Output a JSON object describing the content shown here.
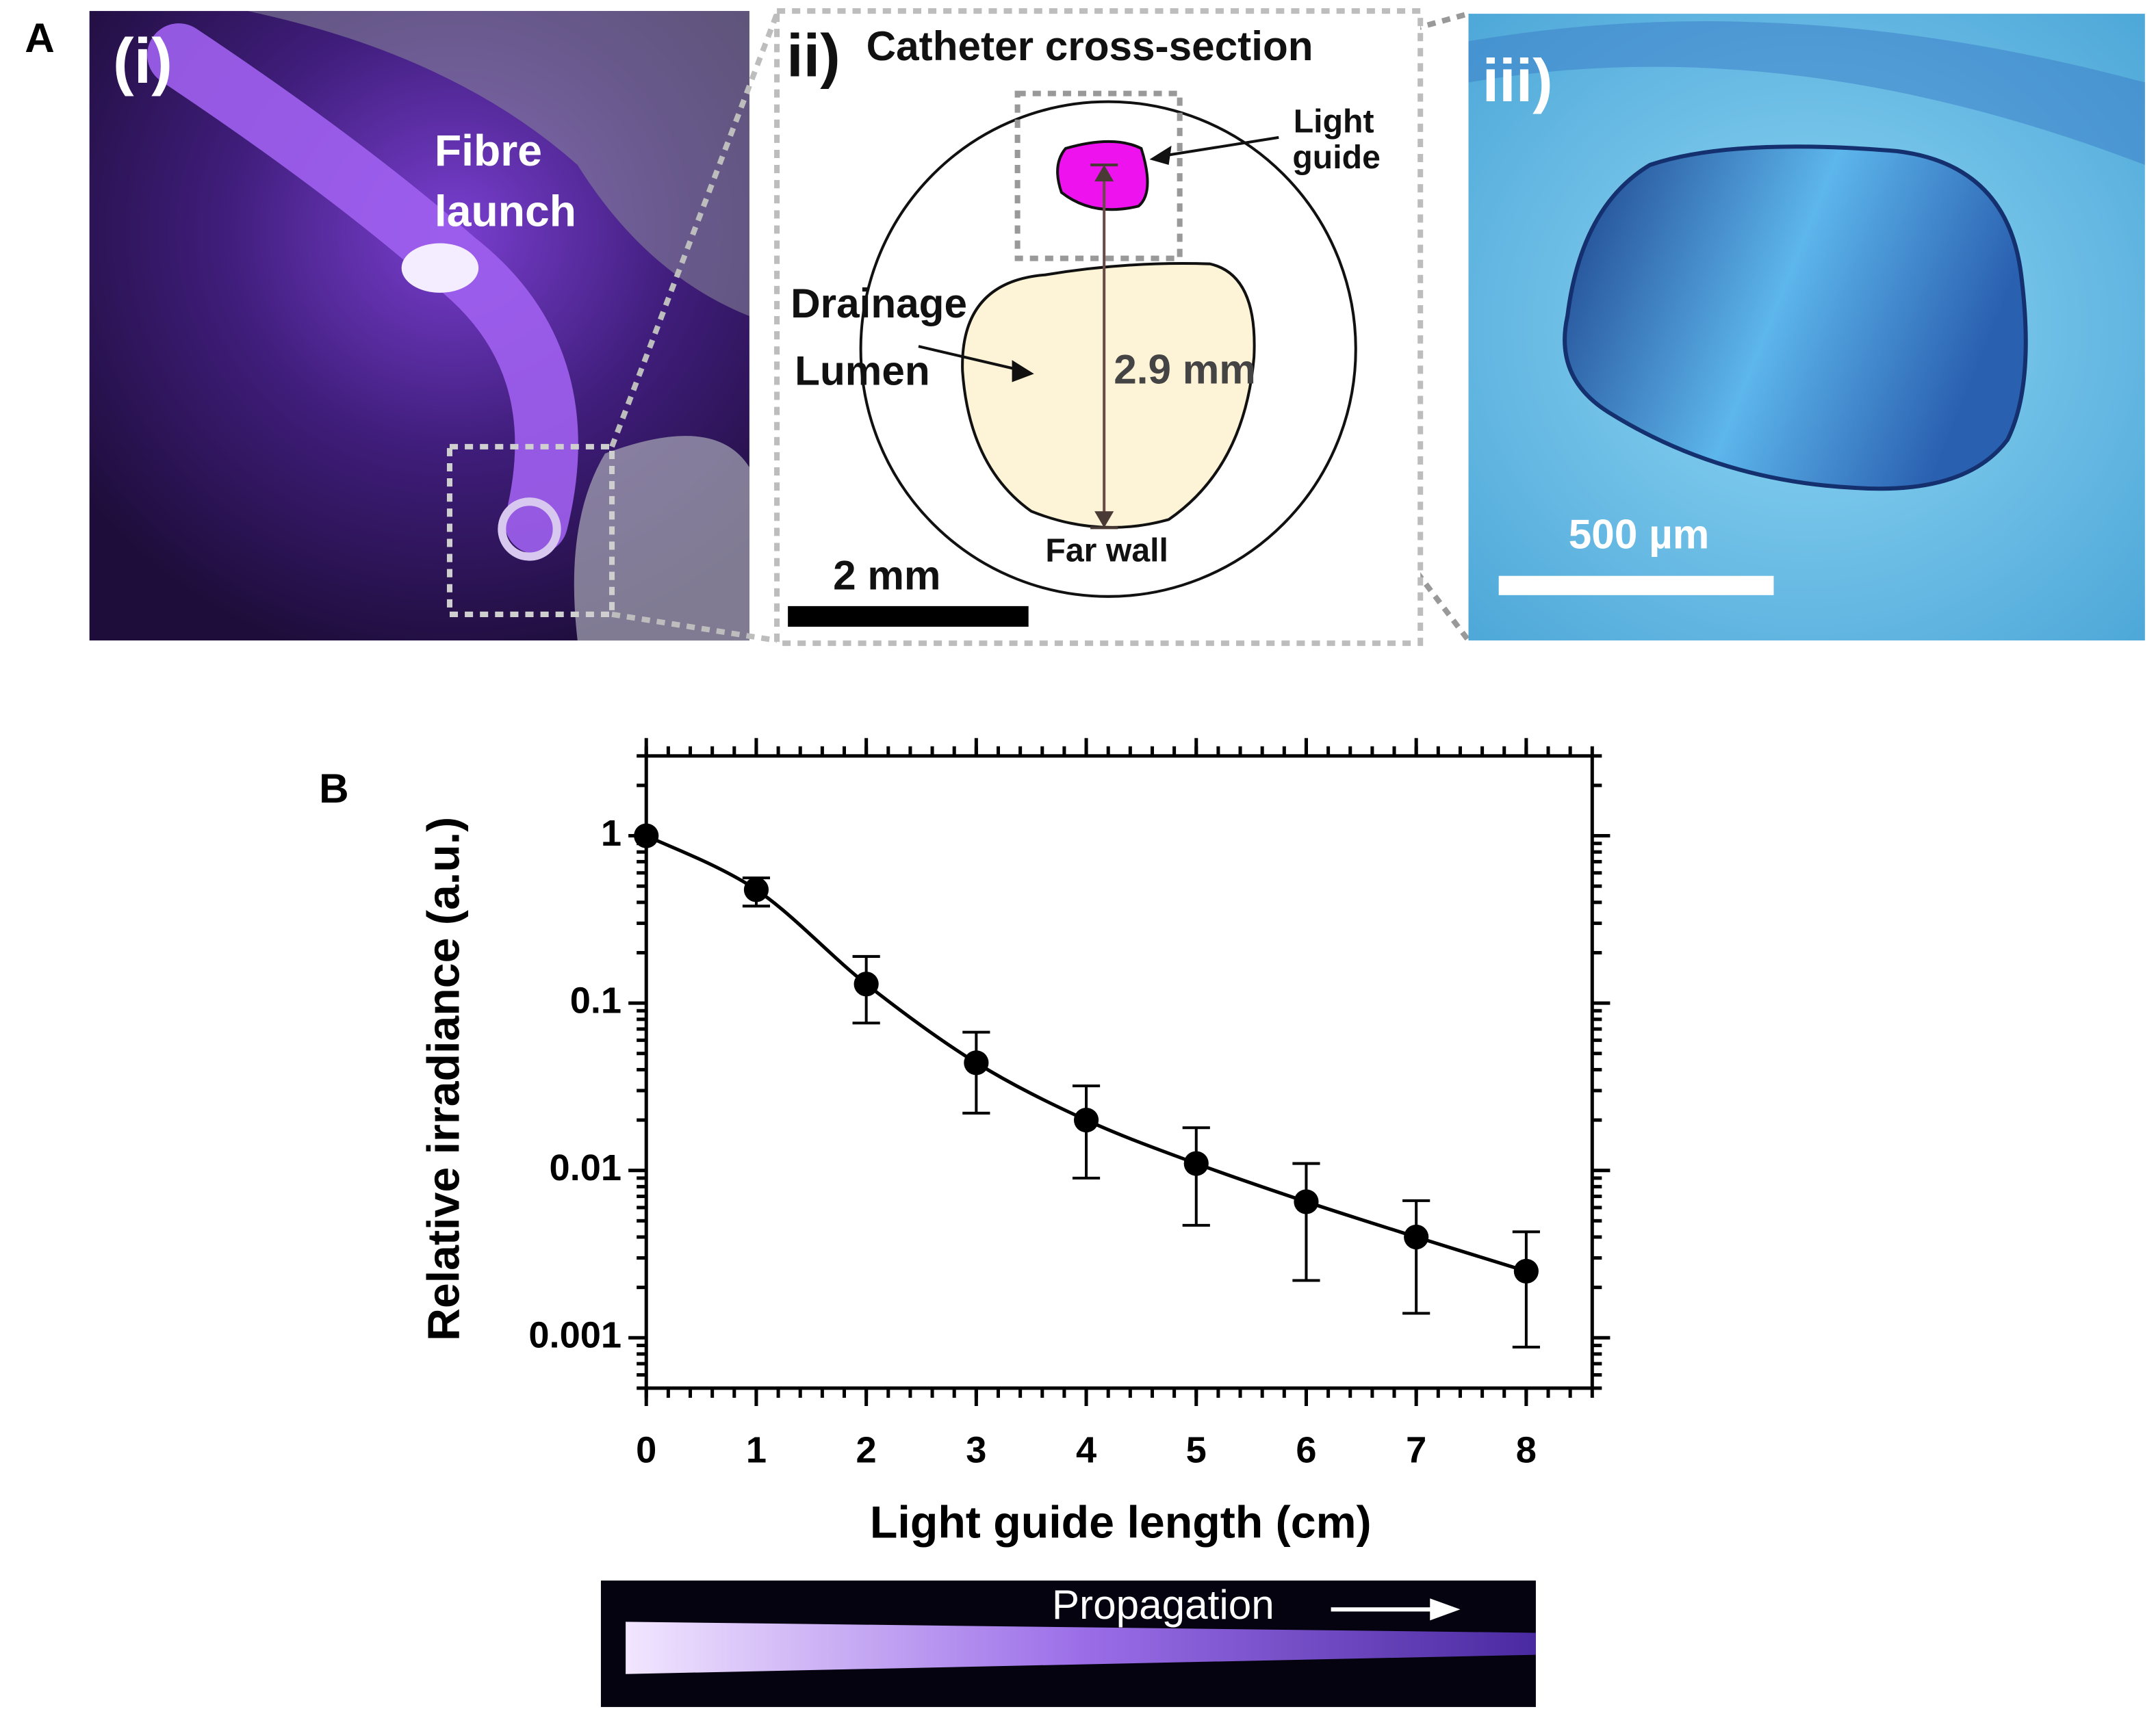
{
  "panel_a": {
    "label": "A",
    "photo_i": {
      "label": "(i)",
      "annotation": [
        "Fibre",
        "launch"
      ]
    },
    "diagram_ii": {
      "label": "ii)",
      "title": "Catheter cross-section",
      "light_guide": [
        "Light",
        "guide"
      ],
      "drainage": [
        "Drainage",
        "Lumen"
      ],
      "dimension": "2.9 mm",
      "far_wall": "Far wall",
      "scale_bar": "2 mm"
    },
    "photo_iii": {
      "label": "iii)",
      "scale_bar": "500 µm"
    }
  },
  "panel_b": {
    "label": "B",
    "strip_label": "Propagation"
  },
  "chart_data": {
    "type": "scatter",
    "x": [
      0,
      1,
      2,
      3,
      4,
      5,
      6,
      7,
      8
    ],
    "values": [
      1,
      0.476,
      0.13,
      0.044,
      0.02,
      0.011,
      0.0065,
      0.004,
      0.0025
    ],
    "y_upper": [
      1,
      0.56,
      0.19,
      0.067,
      0.032,
      0.018,
      0.011,
      0.0066,
      0.0043
    ],
    "y_lower": [
      1,
      0.38,
      0.076,
      0.022,
      0.009,
      0.0047,
      0.0022,
      0.0014,
      0.00088
    ],
    "color": "#000000",
    "xlim": [
      0,
      8.6
    ],
    "ylim": [
      0.0005,
      3
    ],
    "xticks": [
      0,
      1,
      2,
      3,
      4,
      5,
      6,
      7,
      8
    ],
    "yticks": [
      0.001,
      0.01,
      0.1,
      1
    ],
    "log_y": true,
    "x_label": "Light guide length (cm)",
    "y_label": "Relative irradiance (a.u.)"
  }
}
